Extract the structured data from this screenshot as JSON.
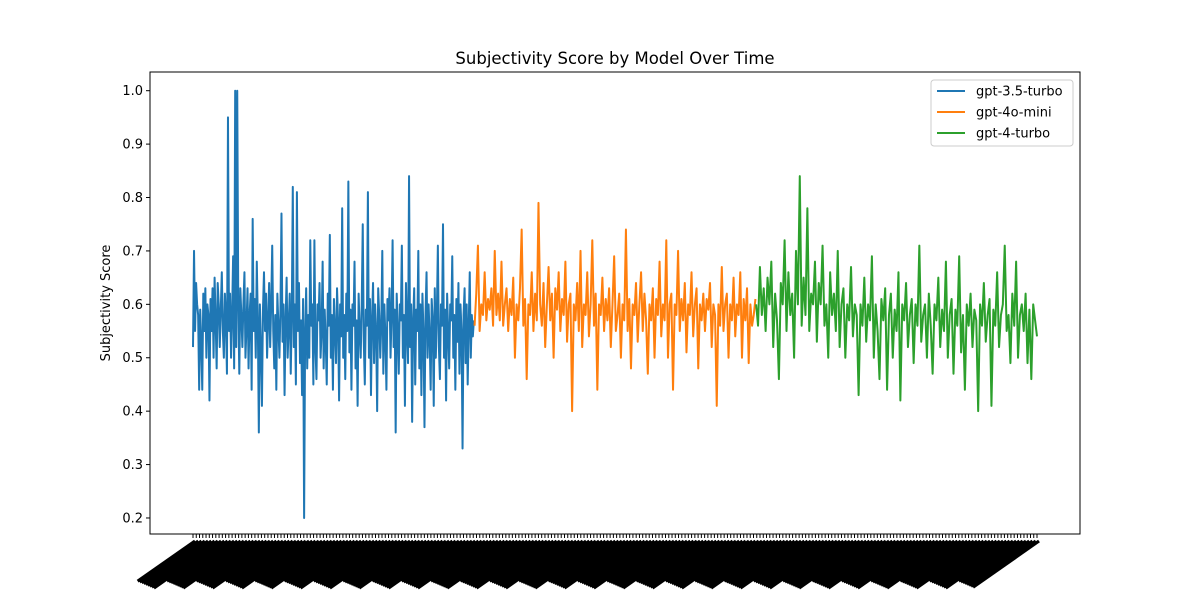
{
  "chart_data": {
    "type": "line",
    "title": "Subjectivity Score by Model Over Time",
    "xlabel": "",
    "ylabel": "Subjectivity Score",
    "ylim": [
      0.17,
      1.035
    ],
    "yticks": [
      0.2,
      0.3,
      0.4,
      0.5,
      0.6,
      0.7,
      0.8,
      0.9,
      1.0
    ],
    "ytick_labels": [
      "0.2",
      "0.3",
      "0.4",
      "0.5",
      "0.6",
      "0.7",
      "0.8",
      "0.9",
      "1.0"
    ],
    "x_tick_labels_note": "dense overlapping rotated date labels (illegible)",
    "x_points_total": 1200,
    "legend_position": "top-right",
    "grid": false,
    "series": [
      {
        "name": "gpt-3.5-turbo",
        "color": "#1f77b4",
        "x_start": 0,
        "x_end": 399,
        "values": [
          0.52,
          0.7,
          0.55,
          0.64,
          0.6,
          0.58,
          0.44,
          0.59,
          0.53,
          0.44,
          0.62,
          0.55,
          0.63,
          0.5,
          0.6,
          0.58,
          0.42,
          0.61,
          0.55,
          0.63,
          0.5,
          0.65,
          0.57,
          0.48,
          0.64,
          0.6,
          0.52,
          0.59,
          0.66,
          0.55,
          0.5,
          0.62,
          0.57,
          0.47,
          0.95,
          0.55,
          0.62,
          0.5,
          0.58,
          0.69,
          0.48,
          1.0,
          0.52,
          1.0,
          0.6,
          0.47,
          0.63,
          0.58,
          0.52,
          0.6,
          0.66,
          0.5,
          0.56,
          0.63,
          0.48,
          0.58,
          0.62,
          0.44,
          0.76,
          0.55,
          0.61,
          0.5,
          0.68,
          0.57,
          0.36,
          0.6,
          0.52,
          0.41,
          0.59,
          0.66,
          0.55,
          0.62,
          0.5,
          0.57,
          0.64,
          0.52,
          0.6,
          0.71,
          0.55,
          0.48,
          0.58,
          0.44,
          0.62,
          0.56,
          0.5,
          0.59,
          0.77,
          0.53,
          0.6,
          0.43,
          0.57,
          0.65,
          0.5,
          0.56,
          0.62,
          0.47,
          0.58,
          0.82,
          0.52,
          0.6,
          0.45,
          0.81,
          0.55,
          0.64,
          0.49,
          0.57,
          0.43,
          0.61,
          0.2,
          0.55,
          0.63,
          0.48,
          0.58,
          0.5,
          0.72,
          0.56,
          0.6,
          0.45,
          0.72,
          0.52,
          0.46,
          0.6,
          0.57,
          0.64,
          0.5,
          0.55,
          0.68,
          0.48,
          0.59,
          0.53,
          0.45,
          0.62,
          0.56,
          0.73,
          0.5,
          0.58,
          0.44,
          0.61,
          0.55,
          0.49,
          0.63,
          0.57,
          0.42,
          0.6,
          0.54,
          0.78,
          0.5,
          0.58,
          0.46,
          0.62,
          0.55,
          0.83,
          0.51,
          0.59,
          0.44,
          0.6,
          0.56,
          0.68,
          0.48,
          0.57,
          0.41,
          0.62,
          0.55,
          0.5,
          0.6,
          0.75,
          0.53,
          0.45,
          0.59,
          0.56,
          0.81,
          0.5,
          0.61,
          0.43,
          0.57,
          0.64,
          0.49,
          0.6,
          0.55,
          0.4,
          0.63,
          0.58,
          0.5,
          0.56,
          0.7,
          0.47,
          0.6,
          0.54,
          0.44,
          0.61,
          0.57,
          0.63,
          0.5,
          0.58,
          0.72,
          0.52,
          0.59,
          0.36,
          0.62,
          0.55,
          0.47,
          0.6,
          0.57,
          0.71,
          0.5,
          0.58,
          0.41,
          0.64,
          0.55,
          0.49,
          0.84,
          0.52,
          0.6,
          0.38,
          0.57,
          0.63,
          0.45,
          0.59,
          0.55,
          0.7,
          0.48,
          0.6,
          0.43,
          0.62,
          0.55,
          0.37,
          0.58,
          0.66,
          0.5,
          0.6,
          0.54,
          0.44,
          0.61,
          0.57,
          0.41,
          0.63,
          0.5,
          0.58,
          0.71,
          0.52,
          0.46,
          0.6,
          0.56,
          0.75,
          0.5,
          0.59,
          0.42,
          0.62,
          0.55,
          0.48,
          0.6,
          0.57,
          0.69,
          0.5,
          0.58,
          0.44,
          0.61,
          0.53,
          0.64,
          0.47,
          0.6,
          0.55,
          0.33,
          0.58,
          0.63,
          0.49,
          0.6,
          0.45,
          0.56,
          0.66,
          0.5,
          0.58,
          0.54,
          0.57
        ]
      },
      {
        "name": "gpt-4o-mini",
        "color": "#ff7f0e",
        "x_start": 400,
        "x_end": 799,
        "values": [
          0.56,
          0.62,
          0.71,
          0.55,
          0.6,
          0.58,
          0.66,
          0.57,
          0.61,
          0.59,
          0.63,
          0.56,
          0.7,
          0.58,
          0.62,
          0.57,
          0.68,
          0.56,
          0.6,
          0.63,
          0.55,
          0.61,
          0.58,
          0.65,
          0.5,
          0.6,
          0.57,
          0.63,
          0.74,
          0.56,
          0.61,
          0.46,
          0.6,
          0.58,
          0.66,
          0.55,
          0.62,
          0.57,
          0.79,
          0.6,
          0.56,
          0.64,
          0.52,
          0.6,
          0.67,
          0.57,
          0.62,
          0.5,
          0.63,
          0.59,
          0.66,
          0.55,
          0.61,
          0.58,
          0.68,
          0.53,
          0.6,
          0.62,
          0.4,
          0.6,
          0.57,
          0.64,
          0.55,
          0.7,
          0.52,
          0.6,
          0.58,
          0.66,
          0.54,
          0.6,
          0.72,
          0.56,
          0.62,
          0.44,
          0.6,
          0.58,
          0.65,
          0.55,
          0.61,
          0.57,
          0.63,
          0.52,
          0.6,
          0.69,
          0.55,
          0.58,
          0.62,
          0.5,
          0.6,
          0.57,
          0.74,
          0.55,
          0.61,
          0.48,
          0.6,
          0.58,
          0.64,
          0.53,
          0.6,
          0.66,
          0.55,
          0.62,
          0.57,
          0.47,
          0.6,
          0.57,
          0.63,
          0.5,
          0.61,
          0.58,
          0.68,
          0.54,
          0.6,
          0.57,
          0.72,
          0.5,
          0.6,
          0.62,
          0.44,
          0.6,
          0.58,
          0.7,
          0.55,
          0.61,
          0.57,
          0.64,
          0.51,
          0.6,
          0.58,
          0.66,
          0.54,
          0.6,
          0.63,
          0.48,
          0.6,
          0.57,
          0.62,
          0.55,
          0.61,
          0.59,
          0.64,
          0.52,
          0.6,
          0.58,
          0.41,
          0.6,
          0.56,
          0.67,
          0.55,
          0.6,
          0.62,
          0.5,
          0.6,
          0.57,
          0.65,
          0.54,
          0.6,
          0.58,
          0.66,
          0.5,
          0.61,
          0.57,
          0.63,
          0.49,
          0.6,
          0.56,
          0.58,
          0.61
        ]
      },
      {
        "name": "gpt-4-turbo",
        "color": "#2ca02c",
        "x_start": 800,
        "x_end": 1199,
        "values": [
          0.6,
          0.56,
          0.67,
          0.58,
          0.63,
          0.55,
          0.65,
          0.6,
          0.68,
          0.52,
          0.62,
          0.57,
          0.46,
          0.64,
          0.6,
          0.72,
          0.55,
          0.66,
          0.58,
          0.62,
          0.5,
          0.7,
          0.6,
          0.84,
          0.56,
          0.65,
          0.58,
          0.78,
          0.55,
          0.62,
          0.6,
          0.68,
          0.53,
          0.64,
          0.6,
          0.71,
          0.56,
          0.6,
          0.5,
          0.66,
          0.58,
          0.62,
          0.55,
          0.7,
          0.52,
          0.6,
          0.63,
          0.5,
          0.6,
          0.57,
          0.67,
          0.54,
          0.6,
          0.58,
          0.43,
          0.6,
          0.56,
          0.65,
          0.53,
          0.6,
          0.57,
          0.69,
          0.5,
          0.6,
          0.55,
          0.46,
          0.61,
          0.57,
          0.63,
          0.44,
          0.58,
          0.62,
          0.5,
          0.59,
          0.55,
          0.66,
          0.42,
          0.6,
          0.57,
          0.64,
          0.52,
          0.58,
          0.61,
          0.49,
          0.6,
          0.56,
          0.71,
          0.53,
          0.58,
          0.6,
          0.5,
          0.62,
          0.56,
          0.47,
          0.6,
          0.57,
          0.65,
          0.52,
          0.59,
          0.55,
          0.68,
          0.5,
          0.58,
          0.61,
          0.47,
          0.59,
          0.56,
          0.69,
          0.51,
          0.58,
          0.44,
          0.6,
          0.56,
          0.62,
          0.52,
          0.59,
          0.57,
          0.4,
          0.6,
          0.56,
          0.64,
          0.53,
          0.58,
          0.61,
          0.41,
          0.59,
          0.56,
          0.66,
          0.52,
          0.58,
          0.6,
          0.71,
          0.55,
          0.58,
          0.49,
          0.62,
          0.56,
          0.68,
          0.5,
          0.58,
          0.6,
          0.55,
          0.62,
          0.49,
          0.59,
          0.46,
          0.6,
          0.57,
          0.54
        ]
      }
    ]
  }
}
